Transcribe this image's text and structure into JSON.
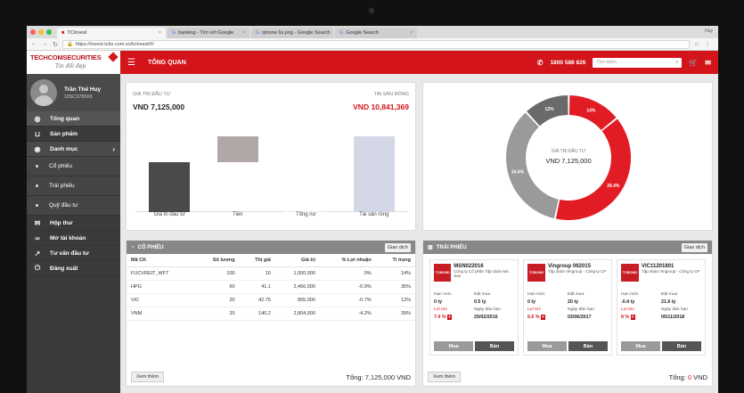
{
  "browser": {
    "tabs": [
      {
        "label": "TCInvest",
        "active": true
      },
      {
        "label": "banking - Tìm với Google",
        "active": false
      },
      {
        "label": "iphone 6s.png - Google Search",
        "active": false
      },
      {
        "label": "Google Search",
        "active": false
      }
    ],
    "url": "https://invest.tcbs.com.vn/tcinvest/#/",
    "profile": "Huy"
  },
  "header": {
    "brand": "TECHCOMSECURITIES",
    "signature": "Tin đối đẹp",
    "title": "TỔNG QUAN",
    "phone": "1800 588 826",
    "search_placeholder": "Tìm kiếm"
  },
  "sidebar": {
    "user_name": "Trần Thế Huy",
    "user_id": "105C378569",
    "items": [
      {
        "label": "Tổng quan",
        "icon": "globe-icon",
        "active": true
      },
      {
        "label": "Sản phẩm",
        "icon": "basket-icon"
      },
      {
        "label": "Danh mục",
        "icon": "eye-icon",
        "expandable": true
      },
      {
        "label": "Cổ phiếu",
        "sub": true
      },
      {
        "label": "Trái phiếu",
        "sub": true
      },
      {
        "label": "Quỹ đầu tư",
        "sub": true
      },
      {
        "label": "Hộp thư",
        "icon": "mail-icon"
      },
      {
        "label": "Mở tài khoản",
        "icon": "link-icon"
      },
      {
        "label": "Tư vấn đầu tư",
        "icon": "chart-icon"
      },
      {
        "label": "Đăng xuất",
        "icon": "power-icon"
      }
    ]
  },
  "overview": {
    "invest_label": "GIÁ TRỊ ĐẦU TƯ",
    "invest_value": "VND 7,125,000",
    "net_label": "TÀI SẢN RÒNG",
    "net_value": "VND 10,841,369"
  },
  "chart_data": [
    {
      "type": "bar",
      "subtype": "waterfall",
      "categories": [
        "Giá trị đầu tư",
        "Tiền",
        "Tổng nợ",
        "Tài sản ròng"
      ],
      "values": [
        7125000,
        3716369,
        0,
        10841369
      ],
      "colors": [
        "#4a4a4a",
        "#b0a8a6",
        "#eeeeee",
        "#d4d8e6"
      ]
    },
    {
      "type": "pie",
      "subtype": "donut",
      "center_label": "GIÁ TRỊ ĐẦU TƯ",
      "center_value": "VND 7,125,000",
      "slices": [
        {
          "label": "14%",
          "value": 14,
          "color": "#e21c24"
        },
        {
          "label": "39.4%",
          "value": 39.4,
          "color": "#e21c24"
        },
        {
          "label": "34.6%",
          "value": 34.6,
          "color": "#9a9a9a"
        },
        {
          "label": "12%",
          "value": 12,
          "color": "#6a6a6a"
        }
      ]
    }
  ],
  "stocks": {
    "title": "CỔ PHIẾU",
    "action": "Giao dịch",
    "columns": [
      "Mã CK",
      "Số lượng",
      "Thị giá",
      "Giá trị",
      "% Lợi nhuận",
      "Tỉ trọng"
    ],
    "rows": [
      {
        "code": "FUCVREIT_WFT",
        "qty": "100",
        "price": "10",
        "value": "1,000,000",
        "pct": "0%",
        "weight": "14%",
        "price_color": "green",
        "pct_color": "green"
      },
      {
        "code": "HPG",
        "qty": "60",
        "price": "41.1",
        "value": "2,466,000",
        "pct": "-0.9%",
        "weight": "35%",
        "price_color": "red",
        "pct_color": "red"
      },
      {
        "code": "VIC",
        "qty": "20",
        "price": "42.75",
        "value": "855,000",
        "pct": "-0.7%",
        "weight": "12%",
        "price_color": "red",
        "pct_color": "red"
      },
      {
        "code": "VNM",
        "qty": "20",
        "price": "140.2",
        "value": "2,804,000",
        "pct": "-4.2%",
        "weight": "39%",
        "price_color": "red",
        "pct_color": "red"
      }
    ],
    "more": "Xem thêm",
    "total_label": "Tổng:",
    "total_value": "7,125,000",
    "total_unit": "VND"
  },
  "bonds": {
    "title": "TRÁI PHIẾU",
    "action": "Giao dịch",
    "logo_text": "TCBOND",
    "labels": {
      "limit": "Hạn mức",
      "bought": "Đặt mua",
      "yield": "Lợi tức",
      "due": "Ngày đáo hạn",
      "buy": "Mua",
      "sell": "Bán"
    },
    "items": [
      {
        "code": "MSN022016",
        "issuer": "Công ty Cổ phần Tập đoàn Ma San",
        "limit": "0 tỷ",
        "bought": "0.5 tỷ",
        "yield": "7.4 %",
        "due": "25/02/2016"
      },
      {
        "code": "Vingroup 062015",
        "issuer": "Tập đoàn Vingroup - Công ty CP",
        "limit": "0 tỷ",
        "bought": "20 tỷ",
        "yield": "6.6 %",
        "due": "02/06/2017"
      },
      {
        "code": "VIC11201801",
        "issuer": "Tập đoàn Vingroup - Công ty CP",
        "limit": "-0.4 tỷ",
        "bought": "21.6 tỷ",
        "yield": "8 %",
        "due": "05/11/2018"
      }
    ],
    "more": "Xem thêm",
    "total_label": "Tổng:",
    "total_value": "0",
    "total_unit": "VND"
  }
}
